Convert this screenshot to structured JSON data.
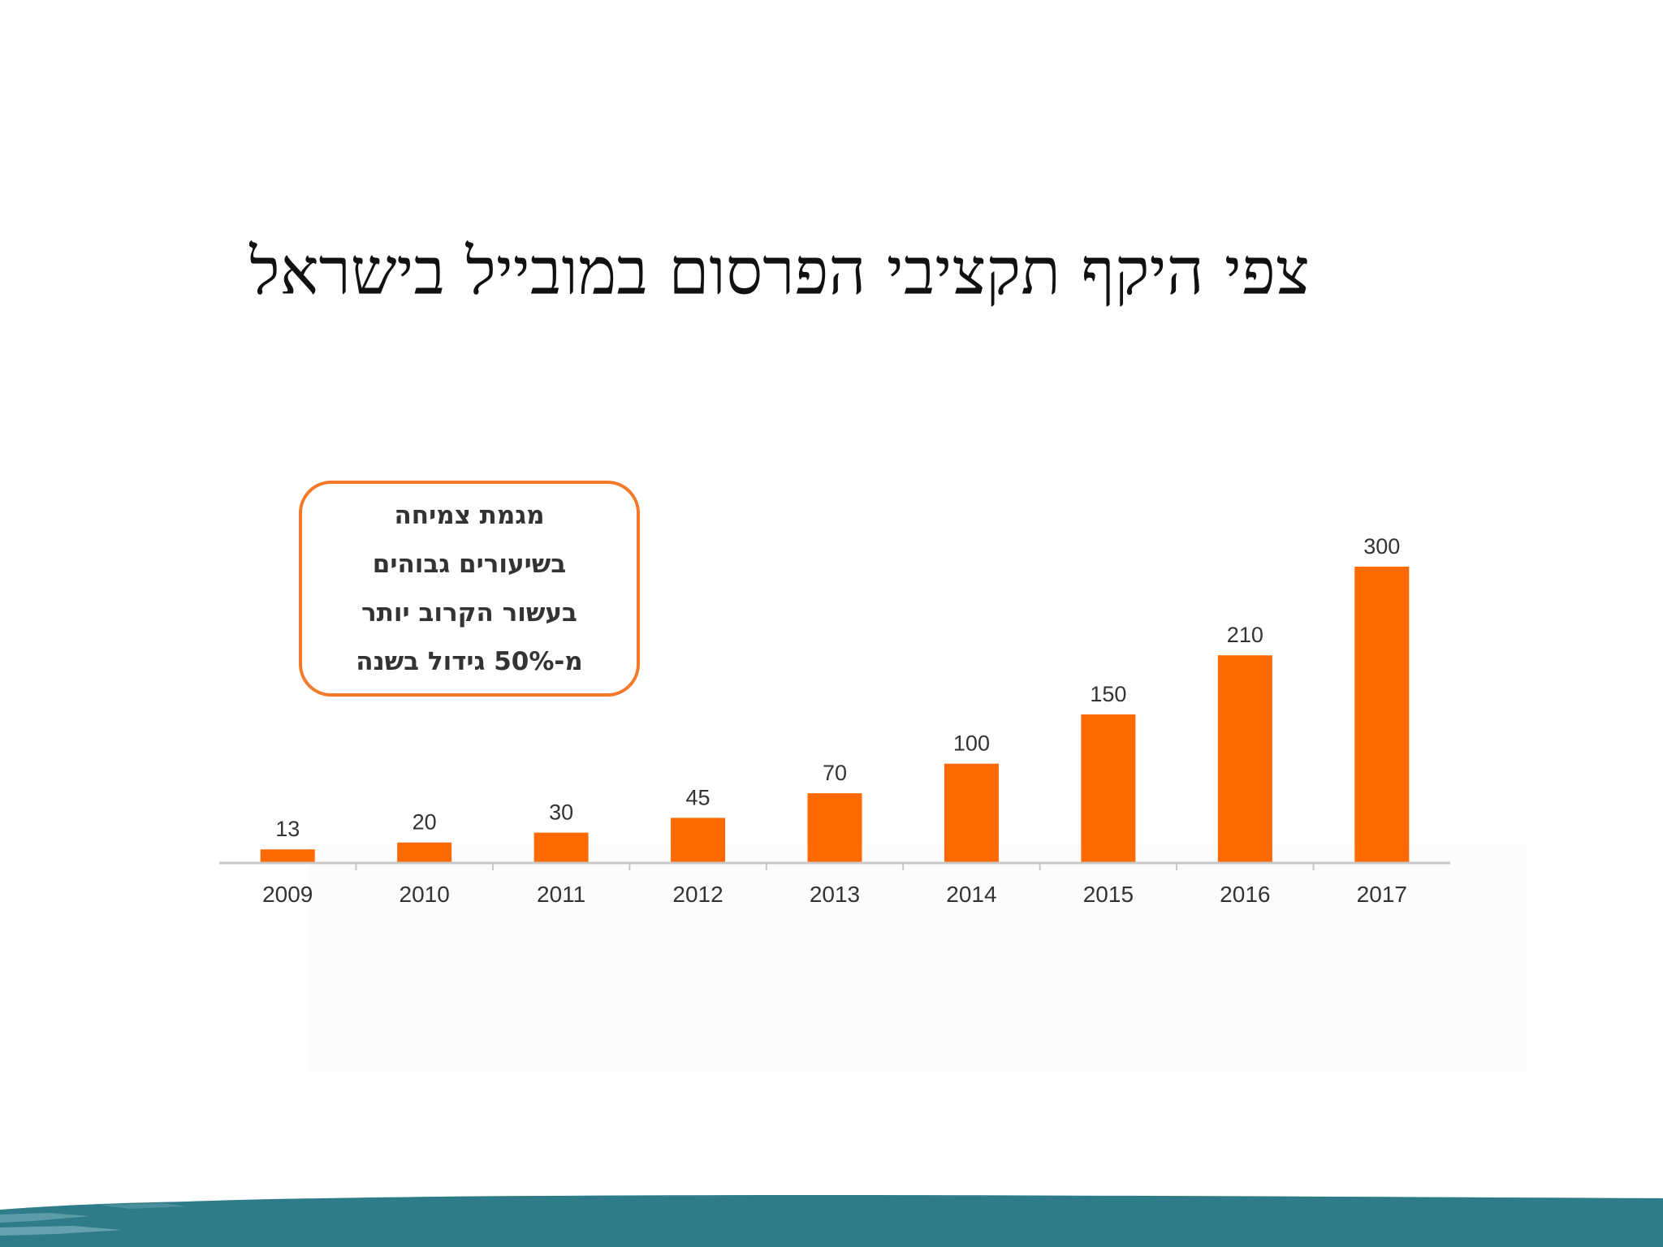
{
  "slide": {
    "title": "צפי היקף תקציבי הפרסום במובייל בישראל"
  },
  "callout": {
    "lines": [
      "מגמת צמיחה",
      "בשיעורים גבוהים",
      "בעשור הקרוב יותר",
      "מ-50% גידול בשנה"
    ]
  },
  "colors": {
    "bar": "#FF6A00",
    "callout_border": "#F47A2A",
    "footer_teal": "#2E7C8A"
  },
  "chart_data": {
    "type": "bar",
    "categories": [
      "2009",
      "2010",
      "2011",
      "2012",
      "2013",
      "2014",
      "2015",
      "2016",
      "2017"
    ],
    "values": [
      13,
      20,
      30,
      45,
      70,
      100,
      150,
      210,
      300
    ],
    "data_labels": [
      "13",
      "20",
      "30",
      "45",
      "70",
      "100",
      "150",
      "210",
      "300"
    ],
    "title": "",
    "xlabel": "",
    "ylabel": "",
    "ylim": [
      0,
      300
    ],
    "grid": false,
    "legend": "none"
  }
}
